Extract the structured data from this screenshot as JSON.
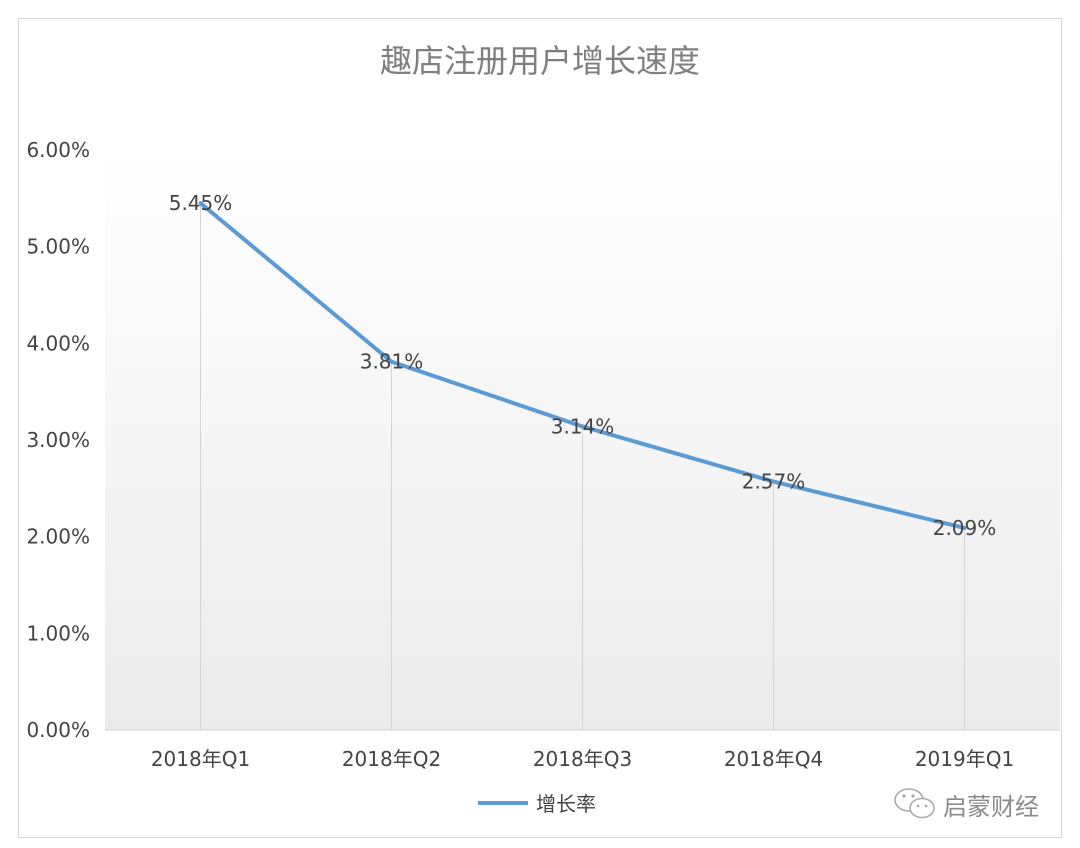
{
  "chart_data": {
    "type": "line",
    "title": "趣店注册用户增长速度",
    "categories": [
      "2018年Q1",
      "2018年Q2",
      "2018年Q3",
      "2018年Q4",
      "2019年Q1"
    ],
    "series": [
      {
        "name": "增长率",
        "values": [
          5.45,
          3.81,
          3.14,
          2.57,
          2.09
        ],
        "color": "#5b9bd5"
      }
    ],
    "data_labels": [
      "5.45%",
      "3.81%",
      "3.14%",
      "2.57%",
      "2.09%"
    ],
    "ylim": [
      0,
      6
    ],
    "yticks": [
      "0.00%",
      "1.00%",
      "2.00%",
      "3.00%",
      "4.00%",
      "5.00%",
      "6.00%"
    ],
    "xlabel": "",
    "ylabel": "",
    "legend": "bottom-center",
    "grid": false
  },
  "watermark": {
    "text": "启蒙财经",
    "icon": "wechat-icon"
  }
}
